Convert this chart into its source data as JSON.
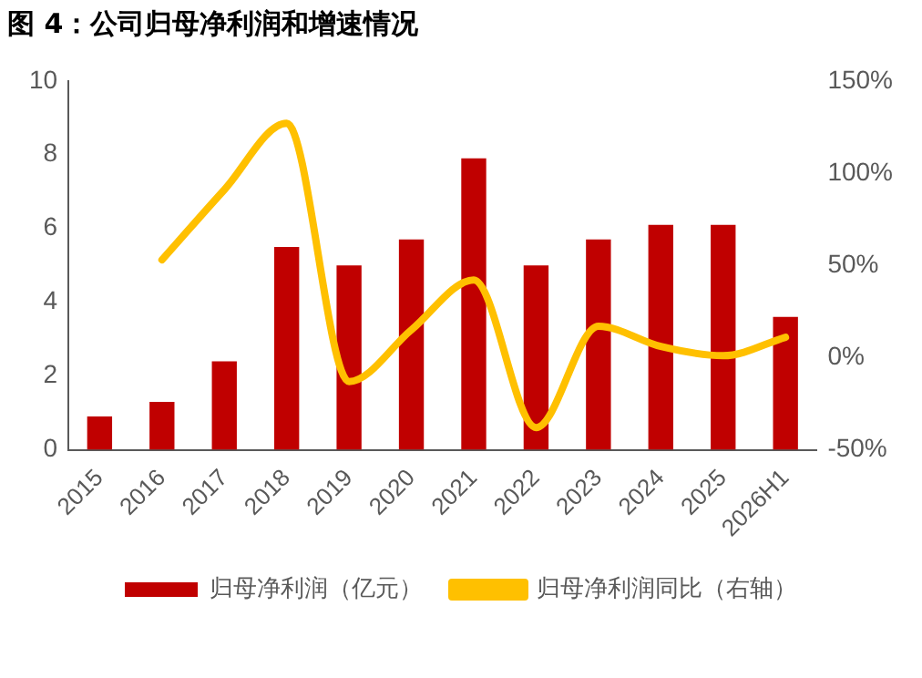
{
  "chart_data": {
    "type": "bar",
    "title": "图 4：公司归母净利润和增速情况",
    "categories": [
      "2015",
      "2016",
      "2017",
      "2018",
      "2019",
      "2020",
      "2021",
      "2022",
      "2023",
      "2024",
      "2025",
      "2026H1"
    ],
    "series": [
      {
        "name": "归母净利润（亿元）",
        "color": "#c00000",
        "values": [
          0.9,
          1.3,
          2.4,
          5.5,
          5.0,
          5.7,
          7.9,
          5.0,
          5.7,
          6.1,
          6.1,
          3.6
        ]
      },
      {
        "name": "归母净利润同比（右轴）",
        "type": "line",
        "axis": "y2",
        "color": "#ffc000",
        "values": [
          null,
          53,
          91,
          127,
          -13,
          15,
          42,
          -38,
          17,
          6,
          1,
          11
        ]
      }
    ],
    "ylim": [
      0,
      10
    ],
    "yticks": [
      0,
      2,
      4,
      6,
      8,
      10
    ],
    "y2lim": [
      -50,
      150
    ],
    "y2ticks": [
      {
        "value": -50,
        "label": "-50%"
      },
      {
        "value": 0,
        "label": "0%"
      },
      {
        "value": 50,
        "label": "50%"
      },
      {
        "value": 100,
        "label": "100%"
      },
      {
        "value": 150,
        "label": "150%"
      }
    ],
    "grid": false,
    "legend": "bottom",
    "marker": "none"
  }
}
